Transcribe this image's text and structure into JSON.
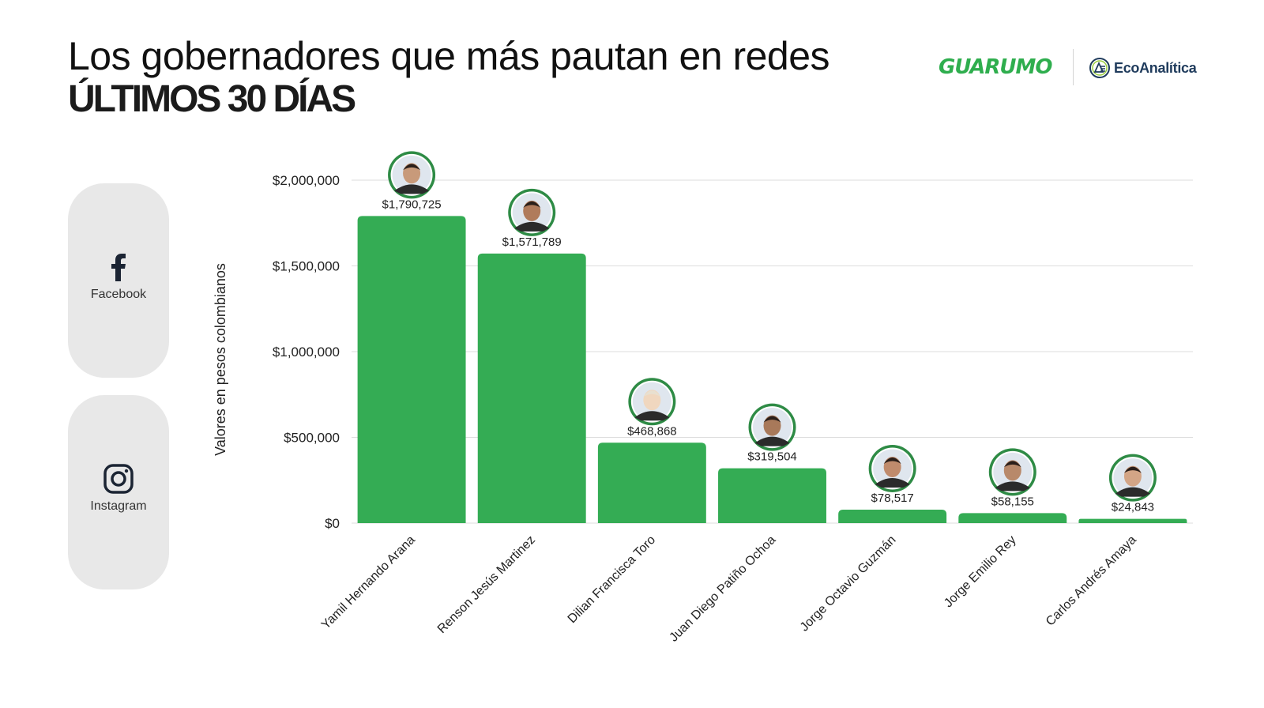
{
  "header": {
    "title": "Los gobernadores que más pautan en redes",
    "subtitle": "ÚLTIMOS 30 DÍAS"
  },
  "logos": {
    "guarumo": "GUARUMO",
    "ecoanalitica": "EcoAnalítica"
  },
  "social": {
    "facebook_label": "Facebook",
    "facebook_icon": "facebook-icon",
    "instagram_label": "Instagram",
    "instagram_icon": "instagram-icon"
  },
  "colors": {
    "bar": "#34ac54",
    "grid": "#dddddd",
    "brand_green": "#2fae4e",
    "panel": "#e8e8e8"
  },
  "chart_data": {
    "type": "bar",
    "categories": [
      "Yamil Hernando Arana",
      "Renson Jesús Martinez",
      "Dilian Francisca Toro",
      "Juan Diego Patiño Ochoa",
      "Jorge Octavio Guzmán",
      "Jorge Emilio Rey",
      "Carlos Andrés Amaya"
    ],
    "values": [
      1790725,
      1571789,
      468868,
      319504,
      78517,
      58155,
      24843
    ],
    "value_labels": [
      "$1,790,725",
      "$1,571,789",
      "$468,868",
      "$319,504",
      "$78,517",
      "$58,155",
      "$24,843"
    ],
    "ylabel": "Valores en pesos colombianos",
    "ylim": [
      0,
      2000000
    ],
    "yticks": [
      0,
      500000,
      1000000,
      1500000,
      2000000
    ],
    "ytick_labels": [
      "$0",
      "$500,000",
      "$1,000,000",
      "$1,500,000",
      "$2,000,000"
    ],
    "grid": true,
    "legend": "none",
    "markers": "avatar-photo-icon"
  }
}
